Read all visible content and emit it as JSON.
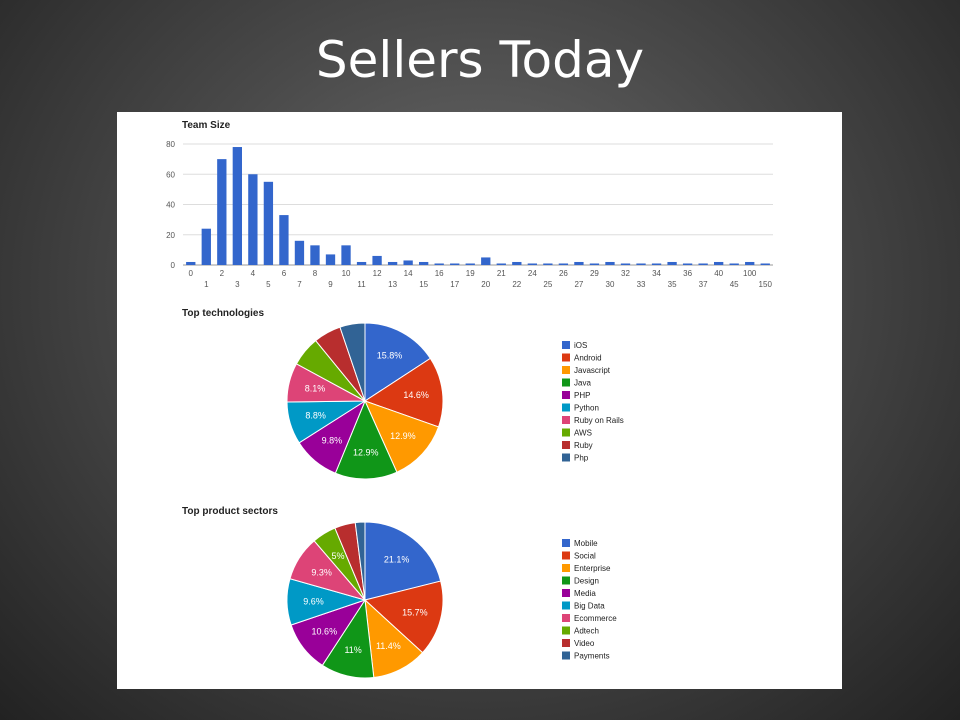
{
  "slide": {
    "title": "Sellers Today"
  },
  "chart_data": [
    {
      "type": "bar",
      "title": "Team Size",
      "xlabel": "",
      "ylabel": "",
      "ylim": [
        0,
        80
      ],
      "yticks": [
        "0",
        "20",
        "40",
        "60",
        "80"
      ],
      "grid": true,
      "color": "#3366cc",
      "categories": [
        "0",
        "1",
        "2",
        "3",
        "4",
        "5",
        "6",
        "7",
        "8",
        "9",
        "10",
        "11",
        "12",
        "13",
        "14",
        "15",
        "16",
        "17",
        "19",
        "20",
        "21",
        "22",
        "24",
        "25",
        "26",
        "27",
        "29",
        "30",
        "32",
        "33",
        "34",
        "35",
        "36",
        "37",
        "40",
        "45",
        "100",
        "150"
      ],
      "values": [
        2,
        24,
        70,
        78,
        60,
        55,
        33,
        16,
        13,
        7,
        13,
        2,
        6,
        2,
        3,
        2,
        1,
        1,
        1,
        5,
        1,
        2,
        1,
        1,
        1,
        2,
        1,
        2,
        1,
        1,
        1,
        2,
        1,
        1,
        2,
        1,
        2,
        1
      ]
    },
    {
      "type": "pie",
      "title": "Top technologies",
      "legend": "right",
      "categories": [
        "iOS",
        "Android",
        "Javascript",
        "Java",
        "PHP",
        "Python",
        "Ruby on Rails",
        "AWS",
        "Ruby",
        "Php"
      ],
      "values": [
        15.8,
        14.6,
        12.9,
        12.9,
        9.8,
        8.8,
        8.1,
        6.2,
        5.7,
        5.2
      ],
      "labels": [
        "15.8%",
        "14.6%",
        "12.9%",
        "12.9%",
        "9.8%",
        "8.8%",
        "8.1%",
        "",
        "",
        ""
      ],
      "colors": [
        "#3366cc",
        "#dc3912",
        "#ff9900",
        "#109618",
        "#990099",
        "#0099c6",
        "#dd4477",
        "#66aa00",
        "#b82e2e",
        "#316395"
      ]
    },
    {
      "type": "pie",
      "title": "Top product sectors",
      "legend": "right",
      "categories": [
        "Mobile",
        "Social",
        "Enterprise",
        "Design",
        "Media",
        "Big Data",
        "Ecommerce",
        "Adtech",
        "Video",
        "Payments"
      ],
      "values": [
        21.1,
        15.7,
        11.4,
        11,
        10.6,
        9.6,
        9.3,
        5,
        4.3,
        2.0
      ],
      "labels": [
        "21.1%",
        "15.7%",
        "11.4%",
        "11%",
        "10.6%",
        "9.6%",
        "9.3%",
        "5%",
        "",
        ""
      ],
      "colors": [
        "#3366cc",
        "#dc3912",
        "#ff9900",
        "#109618",
        "#990099",
        "#0099c6",
        "#dd4477",
        "#66aa00",
        "#b82e2e",
        "#316395"
      ]
    }
  ]
}
